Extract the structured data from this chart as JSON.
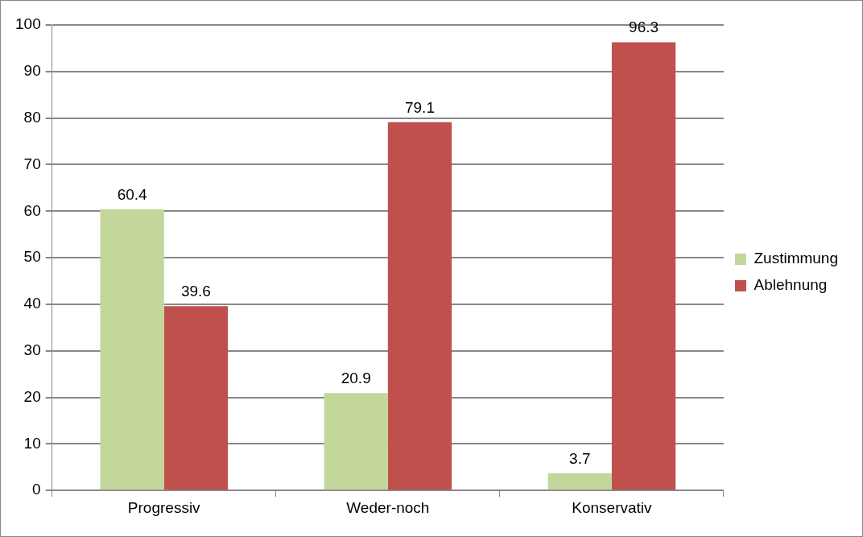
{
  "chart_data": {
    "type": "bar",
    "categories": [
      "Progressiv",
      "Weder-noch",
      "Konservativ"
    ],
    "series": [
      {
        "name": "Zustimmung",
        "color": "#c3d69b",
        "values": [
          60.4,
          20.9,
          3.7
        ]
      },
      {
        "name": "Ablehnung",
        "color": "#c0504d",
        "values": [
          39.6,
          79.1,
          96.3
        ]
      }
    ],
    "ylim": [
      0,
      100
    ],
    "yticks": [
      0,
      10,
      20,
      30,
      40,
      50,
      60,
      70,
      80,
      90,
      100
    ],
    "grid": "y",
    "legend": "right",
    "data_labels": true
  }
}
